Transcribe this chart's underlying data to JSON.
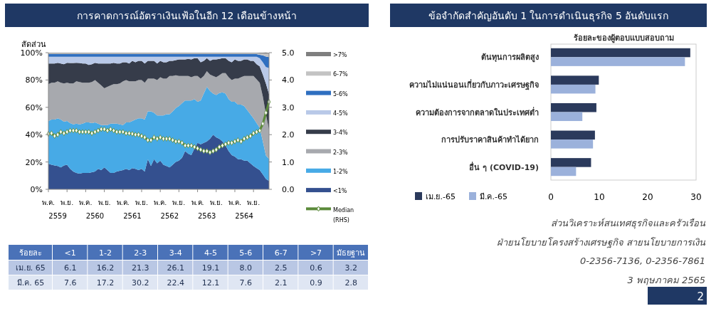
{
  "chart_data": [
    {
      "type": "area",
      "title": "การคาดการณ์อัตราเงินเฟ้อในอีก 12 เดือนข้างหน้า",
      "ylabel": "สัดส่วน",
      "stacked": true,
      "legend": "right",
      "categories": [
        "พ.ค.",
        null,
        null,
        null,
        null,
        null,
        "พ.ย.",
        null,
        null,
        null,
        null,
        null,
        "พ.ค.",
        null,
        null,
        null,
        null,
        null,
        "พ.ย.",
        null,
        null,
        null,
        null,
        null,
        "พ.ค.",
        null,
        null,
        null,
        null,
        null,
        "พ.ย.",
        null,
        null,
        null,
        null,
        null,
        "พ.ค.",
        null,
        null,
        null,
        null,
        null,
        "พ.ย.",
        null,
        null,
        null,
        null,
        null,
        "พ.ค.",
        null,
        null,
        null,
        null,
        null,
        "พ.ย.",
        null,
        null,
        null,
        null,
        null,
        "พ.ค.",
        null,
        null,
        null,
        null,
        null,
        "พ.ย.",
        null,
        null,
        null,
        null,
        null
      ],
      "annotations": [
        "2559",
        "2560",
        "2561",
        "2562",
        "2563",
        "2564"
      ],
      "ylim": [
        0,
        100
      ],
      "yticks": [
        {
          "value": 0,
          "label": "0%"
        },
        {
          "value": 20,
          "label": "20%"
        },
        {
          "value": 40,
          "label": "40%"
        },
        {
          "value": 60,
          "label": "60%"
        },
        {
          "value": 80,
          "label": "80%"
        },
        {
          "value": 100,
          "label": "100%"
        }
      ],
      "y2lim": [
        0,
        5
      ],
      "y2ticks": [
        {
          "value": 0,
          "label": "0.0"
        },
        {
          "value": 1,
          "label": "1.0"
        },
        {
          "value": 2,
          "label": "2.0"
        },
        {
          "value": 3,
          "label": "3.0"
        },
        {
          "value": 4,
          "label": "4.0"
        },
        {
          "value": 5,
          "label": "5.0"
        }
      ],
      "series": [
        {
          "name": "<1%",
          "color": "#34508f",
          "values": [
            18.7,
            18,
            17.5,
            17,
            16,
            17.5,
            18,
            15,
            13,
            12,
            11.5,
            12,
            12,
            12,
            12.5,
            13,
            15,
            14,
            16,
            14,
            12,
            12,
            13,
            13.5,
            14,
            15,
            14,
            15.5,
            15,
            14,
            15,
            13,
            22,
            17,
            22,
            19,
            21,
            18,
            17,
            16,
            18,
            20,
            21,
            23,
            28,
            26,
            25,
            30,
            34,
            33,
            34,
            35,
            37,
            40,
            38,
            37,
            35,
            32,
            28,
            25,
            24,
            22,
            22,
            21,
            21,
            19,
            17,
            15.5,
            14,
            11,
            7.6,
            6.1
          ]
        },
        {
          "name": "1-2%",
          "color": "#47aae6",
          "values": [
            31.3,
            33,
            33.5,
            35,
            35,
            32,
            32,
            33.5,
            34.5,
            36,
            36,
            36,
            37,
            37,
            36,
            36,
            33,
            33,
            31,
            33,
            36,
            36,
            35,
            34,
            33,
            34,
            35,
            34.5,
            36,
            38,
            37,
            38,
            35,
            40,
            34,
            35,
            33,
            36,
            38,
            39,
            39,
            39.5,
            40,
            40,
            37,
            39,
            40,
            36,
            30,
            32,
            36,
            40,
            35,
            30,
            31,
            33.5,
            36,
            38,
            38,
            39,
            40,
            40,
            40,
            40,
            37,
            36,
            35,
            33,
            31,
            24,
            17.2,
            16.2
          ]
        },
        {
          "name": "2-3%",
          "color": "#a7a9ae",
          "values": [
            27,
            27,
            27,
            27,
            27,
            28,
            28,
            29,
            30,
            31,
            31,
            30,
            29,
            29,
            30,
            31,
            30,
            29,
            27,
            28,
            28,
            29,
            29,
            30,
            32,
            31,
            30,
            29,
            28,
            28,
            28,
            27,
            24,
            24,
            25,
            26,
            28,
            27,
            26,
            28,
            26,
            24,
            22,
            20,
            18,
            18,
            17,
            17,
            19,
            16,
            13,
            11.5,
            12,
            13,
            13,
            13,
            14,
            15,
            16,
            16,
            17,
            19,
            20,
            22,
            25,
            28,
            31,
            32,
            33,
            33,
            30.2,
            21.3
          ]
        },
        {
          "name": "3-4%",
          "color": "#363c4a",
          "values": [
            15,
            14,
            14,
            13.6,
            14,
            14,
            14.6,
            15,
            15,
            13.6,
            14,
            14,
            14,
            13,
            13,
            12.6,
            14,
            16,
            18,
            17,
            16,
            15.6,
            15,
            14.5,
            14,
            13,
            13,
            15,
            14,
            14,
            14,
            14,
            13,
            13,
            13,
            12,
            12,
            12,
            12,
            11,
            11,
            11,
            12,
            12,
            12,
            12.5,
            13,
            13,
            13,
            12,
            11,
            9.5,
            10,
            12,
            13,
            12,
            11,
            11,
            12,
            13,
            14,
            13,
            12,
            12,
            12,
            11,
            11,
            11,
            12,
            16,
            22.4,
            26.1
          ]
        },
        {
          "name": "4-5%",
          "color": "#b9c9e8",
          "values": [
            5,
            5,
            5,
            4.4,
            5,
            5.5,
            4.4,
            4.5,
            4.5,
            4.4,
            4.5,
            5,
            5,
            6,
            5.5,
            4.4,
            5,
            5,
            5,
            5,
            5,
            4.4,
            5,
            5,
            4,
            4,
            5,
            3,
            4,
            3,
            3,
            5,
            3,
            3,
            3,
            5,
            3,
            4,
            4,
            3,
            3,
            2.5,
            2,
            2,
            2,
            1.5,
            2,
            1,
            1,
            4,
            3,
            1,
            3,
            2,
            2,
            1.5,
            1,
            1,
            3,
            4,
            2,
            3,
            3,
            2,
            2,
            3,
            3,
            5.5,
            6,
            9,
            12.1,
            19.1
          ]
        },
        {
          "name": "5-6%",
          "color": "#2f6fc0",
          "values": [
            2,
            2,
            2,
            2,
            2,
            2,
            2,
            2,
            2,
            2,
            2,
            2,
            2,
            2,
            2,
            2,
            2,
            2,
            2,
            2,
            2,
            2,
            2,
            2,
            2,
            2,
            2,
            2,
            2,
            2,
            2,
            2,
            2,
            2,
            2,
            2,
            2,
            2,
            2,
            2,
            2,
            2,
            2,
            2,
            2,
            2,
            2,
            2,
            2,
            2,
            2,
            2,
            2,
            2,
            2,
            2,
            2,
            2,
            2,
            2,
            2,
            2,
            2,
            2,
            2,
            2,
            2,
            2,
            2.5,
            5,
            7.6,
            8.0
          ]
        },
        {
          "name": "6-7%",
          "color": "#c3c3c3",
          "values": [
            0.6,
            0.6,
            0.6,
            0.6,
            0.6,
            0.6,
            0.6,
            0.6,
            0.6,
            0.6,
            0.6,
            0.6,
            0.6,
            0.6,
            0.6,
            0.6,
            0.6,
            0.6,
            0.6,
            0.6,
            0.6,
            0.6,
            0.6,
            0.6,
            0.6,
            0.6,
            0.6,
            0.6,
            0.6,
            0.6,
            0.6,
            0.6,
            0.6,
            0.6,
            0.6,
            0.6,
            0.6,
            0.6,
            0.6,
            0.6,
            0.6,
            0.6,
            0.6,
            0.6,
            0.6,
            0.6,
            0.6,
            0.6,
            0.6,
            0.6,
            0.6,
            0.6,
            0.6,
            0.6,
            0.6,
            0.6,
            0.6,
            0.6,
            0.6,
            0.6,
            0.6,
            0.6,
            0.6,
            0.6,
            0.6,
            0.6,
            0.6,
            0.6,
            1.0,
            1.4,
            2.1,
            2.5
          ]
        },
        {
          "name": ">7%",
          "color": "#7f7f7f",
          "values": [
            0.4,
            0.4,
            0.4,
            0.4,
            0.4,
            0.4,
            0.4,
            0.4,
            0.4,
            0.4,
            0.4,
            0.4,
            0.4,
            0.4,
            0.4,
            0.4,
            0.4,
            0.4,
            0.4,
            0.4,
            0.4,
            0.4,
            0.4,
            0.4,
            0.4,
            0.4,
            0.4,
            0.4,
            0.4,
            0.4,
            0.4,
            0.4,
            0.4,
            0.4,
            0.4,
            0.4,
            0.4,
            0.4,
            0.4,
            0.4,
            0.4,
            0.4,
            0.4,
            0.4,
            0.4,
            0.4,
            0.4,
            0.4,
            0.4,
            0.4,
            0.4,
            0.4,
            0.4,
            0.4,
            0.4,
            0.4,
            0.4,
            0.4,
            0.4,
            0.4,
            0.4,
            0.4,
            0.4,
            0.4,
            0.4,
            0.4,
            0.4,
            0.4,
            0.5,
            0.6,
            0.9,
            0.6
          ]
        },
        {
          "name": "Median (RHS)",
          "type": "line",
          "axis": "y2",
          "marker": "diamond",
          "color": "#5b8a3a",
          "values": [
            2.03,
            2.05,
            1.95,
            2.0,
            2.1,
            2.05,
            2.1,
            2.15,
            2.15,
            2.15,
            2.1,
            2.1,
            2.1,
            2.1,
            2.05,
            2.1,
            2.15,
            2.2,
            2.2,
            2.15,
            2.2,
            2.15,
            2.1,
            2.1,
            2.1,
            2.05,
            2.05,
            2.03,
            2.0,
            2.0,
            1.95,
            1.9,
            1.8,
            1.8,
            1.9,
            1.85,
            1.9,
            1.85,
            1.85,
            1.85,
            1.8,
            1.75,
            1.75,
            1.7,
            1.6,
            1.6,
            1.6,
            1.55,
            1.5,
            1.45,
            1.4,
            1.4,
            1.35,
            1.4,
            1.45,
            1.55,
            1.6,
            1.65,
            1.7,
            1.7,
            1.75,
            1.8,
            1.75,
            1.85,
            1.9,
            1.95,
            2.05,
            2.1,
            2.15,
            2.4,
            2.8,
            3.2
          ]
        }
      ]
    },
    {
      "type": "heatmap",
      "ylabel": "ร้อยละ",
      "categories": [
        "<1",
        "1-2",
        "2-3",
        "3-4",
        "4-5",
        "5-6",
        "6-7",
        ">7",
        "มัธยฐาน"
      ],
      "y_categories": [
        "เม.ย. 65",
        "มี.ค. 65"
      ],
      "colors": [
        "#b9c7e4",
        "#dfe6f3"
      ],
      "cells": [
        [
          6.1,
          16.2,
          21.3,
          26.1,
          19.1,
          8.0,
          2.5,
          0.6,
          3.2
        ],
        [
          7.6,
          17.2,
          30.2,
          22.4,
          12.1,
          7.6,
          2.1,
          0.9,
          2.8
        ]
      ],
      "cell_labels": [
        [
          "6.1",
          "16.2",
          "21.3",
          "26.1",
          "19.1",
          "8.0",
          "2.5",
          "0.6",
          "3.2"
        ],
        [
          "7.6",
          "17.2",
          "30.2",
          "22.4",
          "12.1",
          "7.6",
          "2.1",
          "0.9",
          "2.8"
        ]
      ]
    },
    {
      "type": "bar",
      "orientation": "horizontal",
      "title": "ข้อจำกัดสำคัญอันดับ 1 ในการดำเนินธุรกิจ 5 อันดับแรก",
      "xlabel": "ร้อยละของผู้ตอบแบบสอบถาม",
      "legend": "bottom left",
      "categories": [
        "ต้นทุนการผลิตสูง",
        "ความไม่แน่นอนเกี่ยวกับภาวะเศรษฐกิจ",
        "ความต้องการจากตลาดในประเทศต่ำ",
        "การปรับราคาสินค้าทำได้ยาก",
        "อื่น ๆ (COVID-19)"
      ],
      "xlim": [
        0,
        30
      ],
      "xticks": [
        0,
        10,
        20,
        30
      ],
      "series": [
        {
          "name": "เม.ย.-65",
          "color": "#2b3a5c",
          "values": [
            28.8,
            9.9,
            9.4,
            9.1,
            8.3
          ]
        },
        {
          "name": "มี.ค.-65",
          "color": "#9bb1db",
          "values": [
            27.7,
            9.2,
            6.5,
            8.7,
            5.2
          ]
        }
      ],
      "annotations": [
        "ส่วนวิเคราะห์สนเทศธุรกิจและครัวเรือน",
        "ฝ่ายนโยบายโครงสร้างเศรษฐกิจ สายนโยบายการเงิน",
        "0-2356-7136, 0-2356-7861",
        "3 พฤษภาคม 2565",
        "2"
      ]
    }
  ]
}
